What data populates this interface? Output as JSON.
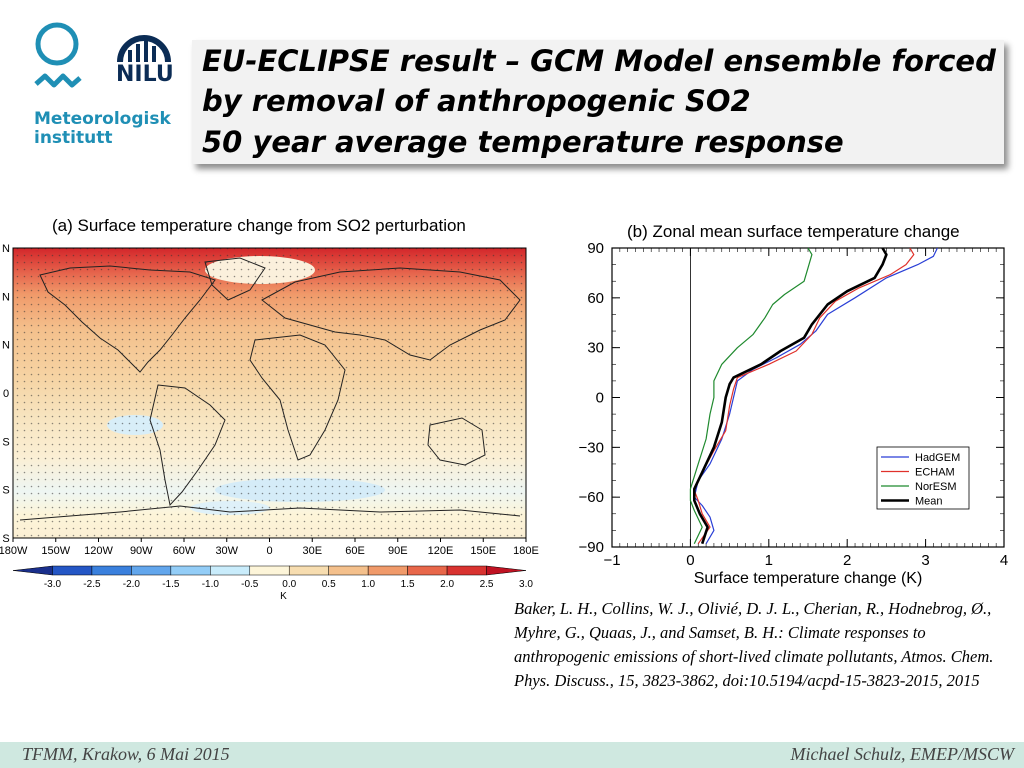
{
  "logos": {
    "met_line1": "Meteorologisk",
    "met_line2": "institutt",
    "nilu": "NILU",
    "met_color": "#1f8fb5",
    "nilu_color": "#0b2c55"
  },
  "title": {
    "line1": "EU-ECLIPSE result – GCM Model ensemble forced",
    "line2": "by removal of anthropogenic SO2",
    "line3": "50 year average temperature response"
  },
  "map_panel": {
    "title": "(a)  Surface temperature change from SO2 perturbation",
    "lon_ticks": [
      "180W",
      "150W",
      "120W",
      "90W",
      "60W",
      "30W",
      "0",
      "30E",
      "60E",
      "90E",
      "120E",
      "150E",
      "180E"
    ],
    "lat_tick_fragments": [
      "N",
      "N",
      "N",
      "0",
      "S",
      "S",
      "S"
    ],
    "colorbar_values": [
      "-3.0",
      "-2.5",
      "-2.0",
      "-1.5",
      "-1.0",
      "-0.5",
      "0.0",
      "0.5",
      "1.0",
      "1.5",
      "2.0",
      "2.5",
      "3.0"
    ],
    "colorbar_unit": "K",
    "colorbar_colors": [
      "#1a2f8c",
      "#2456c5",
      "#3a80dd",
      "#62a6ec",
      "#93cdf7",
      "#c9ecfb",
      "#fdf5d9",
      "#f7ddb0",
      "#f4c08c",
      "#f09a6a",
      "#e8674a",
      "#d93330",
      "#c01222"
    ]
  },
  "chart_data": {
    "type": "line",
    "title": "(b)  Zonal mean surface temperature change",
    "xlabel": "Surface temperature change (K)",
    "ylabel": "",
    "xlim": [
      -1,
      4
    ],
    "ylim": [
      -90,
      90
    ],
    "x_ticks": [
      "−1",
      "0",
      "1",
      "2",
      "3",
      "4"
    ],
    "y_ticks": [
      "90",
      "60",
      "30",
      "0",
      "−30",
      "−60",
      "−90"
    ],
    "legend_position": "lower-right",
    "series": [
      {
        "name": "HadGEM",
        "color": "#2a3fd6",
        "points": [
          [
            0.2,
            -88
          ],
          [
            0.3,
            -80
          ],
          [
            0.25,
            -72
          ],
          [
            0.15,
            -65
          ],
          [
            0.05,
            -60
          ],
          [
            0.1,
            -50
          ],
          [
            0.25,
            -40
          ],
          [
            0.4,
            -25
          ],
          [
            0.5,
            -10
          ],
          [
            0.55,
            0
          ],
          [
            0.6,
            10
          ],
          [
            0.8,
            17
          ],
          [
            1.1,
            24
          ],
          [
            1.4,
            32
          ],
          [
            1.6,
            40
          ],
          [
            1.75,
            50
          ],
          [
            2.1,
            60
          ],
          [
            2.5,
            72
          ],
          [
            2.9,
            80
          ],
          [
            3.1,
            85
          ],
          [
            3.15,
            90
          ]
        ]
      },
      {
        "name": "ECHAM",
        "color": "#e0312b",
        "points": [
          [
            0.1,
            -88
          ],
          [
            0.25,
            -78
          ],
          [
            0.15,
            -70
          ],
          [
            0.1,
            -62
          ],
          [
            0.05,
            -56
          ],
          [
            0.15,
            -45
          ],
          [
            0.3,
            -32
          ],
          [
            0.45,
            -20
          ],
          [
            0.5,
            -5
          ],
          [
            0.55,
            5
          ],
          [
            0.6,
            12
          ],
          [
            1.0,
            20
          ],
          [
            1.35,
            28
          ],
          [
            1.55,
            38
          ],
          [
            1.65,
            48
          ],
          [
            1.85,
            58
          ],
          [
            2.15,
            66
          ],
          [
            2.55,
            74
          ],
          [
            2.75,
            80
          ],
          [
            2.85,
            86
          ],
          [
            2.8,
            90
          ]
        ]
      },
      {
        "name": "NorESM",
        "color": "#1f8a2e",
        "points": [
          [
            0.05,
            -88
          ],
          [
            0.15,
            -78
          ],
          [
            0.05,
            -68
          ],
          [
            0.0,
            -62
          ],
          [
            0.0,
            -55
          ],
          [
            0.1,
            -40
          ],
          [
            0.2,
            -25
          ],
          [
            0.25,
            -10
          ],
          [
            0.3,
            0
          ],
          [
            0.3,
            10
          ],
          [
            0.4,
            20
          ],
          [
            0.6,
            30
          ],
          [
            0.8,
            38
          ],
          [
            0.95,
            48
          ],
          [
            1.05,
            56
          ],
          [
            1.2,
            62
          ],
          [
            1.45,
            70
          ],
          [
            1.5,
            78
          ],
          [
            1.55,
            86
          ],
          [
            1.5,
            90
          ]
        ]
      },
      {
        "name": "Mean",
        "color": "#000000",
        "points": [
          [
            0.15,
            -88
          ],
          [
            0.22,
            -78
          ],
          [
            0.12,
            -70
          ],
          [
            0.05,
            -62
          ],
          [
            0.05,
            -55
          ],
          [
            0.15,
            -45
          ],
          [
            0.3,
            -30
          ],
          [
            0.4,
            -15
          ],
          [
            0.45,
            0
          ],
          [
            0.5,
            8
          ],
          [
            0.55,
            12
          ],
          [
            0.9,
            20
          ],
          [
            1.15,
            28
          ],
          [
            1.45,
            36
          ],
          [
            1.55,
            44
          ],
          [
            1.75,
            56
          ],
          [
            2.0,
            64
          ],
          [
            2.35,
            72
          ],
          [
            2.45,
            80
          ],
          [
            2.5,
            86
          ],
          [
            2.45,
            90
          ]
        ]
      }
    ]
  },
  "reference": "Baker, L. H., Collins, W. J., Olivié, D. J. L., Cherian, R., Hodnebrog, Ø., Myhre, G., Quaas, J., and Samset, B. H.: Climate responses to anthropogenic emissions of short-lived climate pollutants, Atmos. Chem. Phys. Discuss., 15, 3823-3862, doi:10.5194/acpd-15-3823-2015, 2015",
  "footer": {
    "left": "TFMM, Krakow, 6 Mai 2015",
    "right": "Michael Schulz, EMEP/MSCW"
  }
}
